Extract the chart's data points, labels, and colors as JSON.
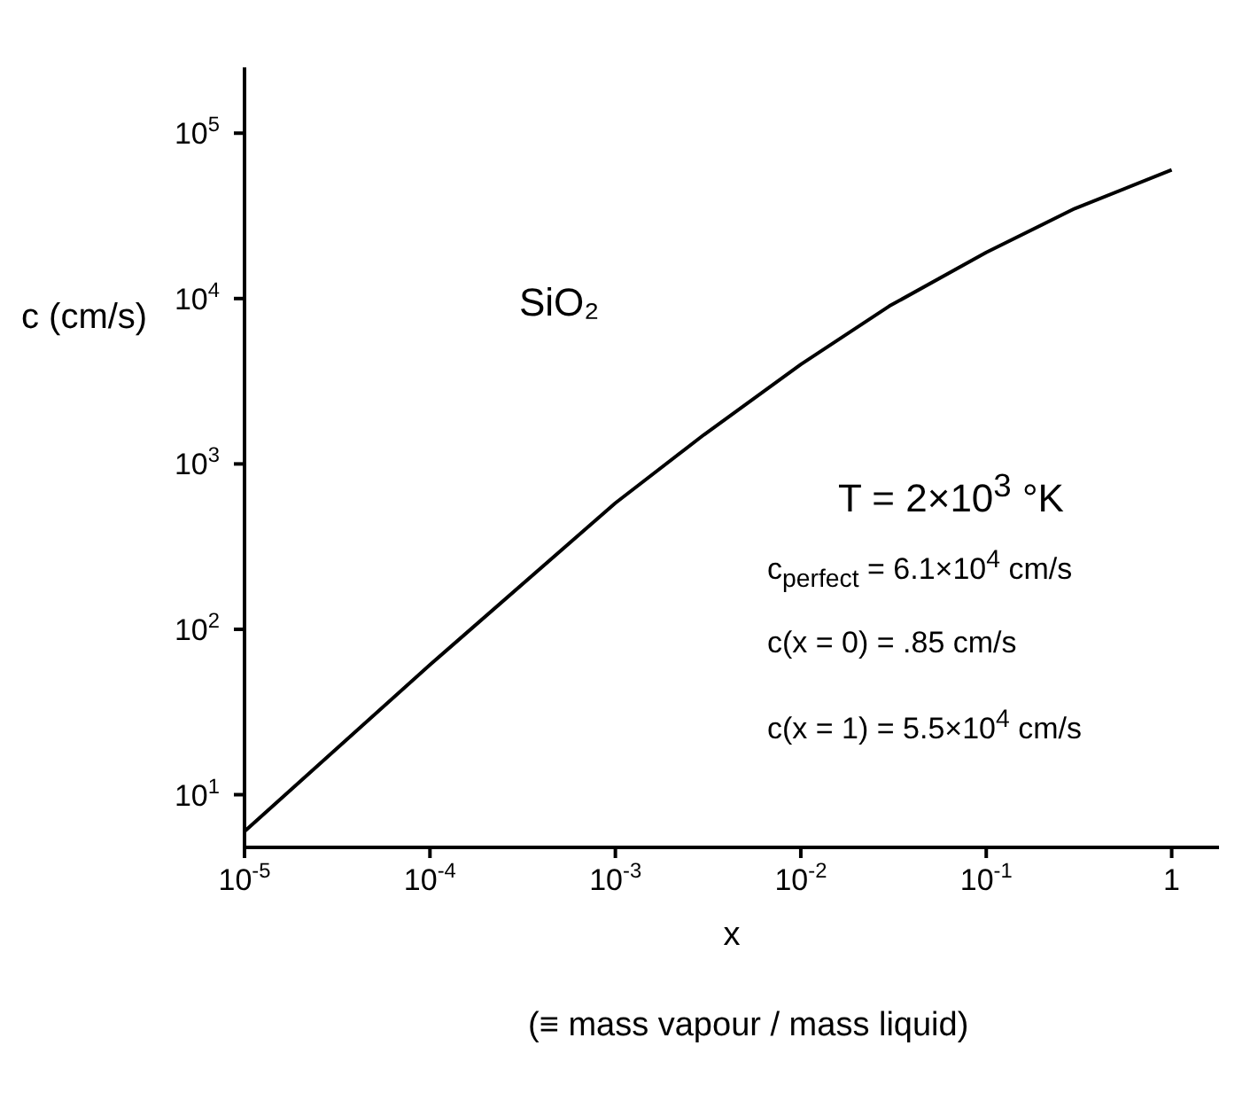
{
  "chart_data": {
    "type": "line",
    "xlabel": "x",
    "ylabel": "c (cm/s)",
    "x": [
      1e-05,
      0.0001,
      0.001,
      0.003,
      0.01,
      0.03,
      0.1,
      0.3,
      1
    ],
    "series": [
      {
        "color": "#000000",
        "values": [
          6,
          61,
          580,
          1500,
          4000,
          9000,
          19000,
          35000,
          60000
        ]
      }
    ],
    "log": "xy",
    "xlim": [
      1e-05,
      1.8
    ],
    "ylim": [
      4.8,
      250000
    ],
    "xticks": [
      {
        "value": 1e-05,
        "label": "10$^{-5}$"
      },
      {
        "value": 0.0001,
        "label": "10$^{-4}$"
      },
      {
        "value": 0.001,
        "label": "10$^{-3}$"
      },
      {
        "value": 0.01,
        "label": "10$^{-2}$"
      },
      {
        "value": 0.1,
        "label": "10$^{-1}$"
      },
      1
    ],
    "yticks": [
      {
        "value": 10,
        "label": "10$^{1}$"
      },
      {
        "value": 100,
        "label": "10$^{2}$"
      },
      {
        "value": 1000,
        "label": "10$^{3}$"
      },
      {
        "value": 10000,
        "label": "10$^{4}$"
      },
      {
        "value": 100000,
        "label": "10$^{5}$"
      }
    ],
    "grid": false,
    "legend": false,
    "marker": "none",
    "line_style": "solid",
    "annotations": [
      "SiO₂",
      "T = 2×10$^{3}$ °K",
      "c$_{perfect}$ = 6.1×10$^{4}$ cm/s",
      "c(x = 0) = .85 cm/s",
      "c(x = 1) = 5.5×10$^{4}$ cm/s",
      "(≡ mass vapour / mass liquid)"
    ]
  }
}
